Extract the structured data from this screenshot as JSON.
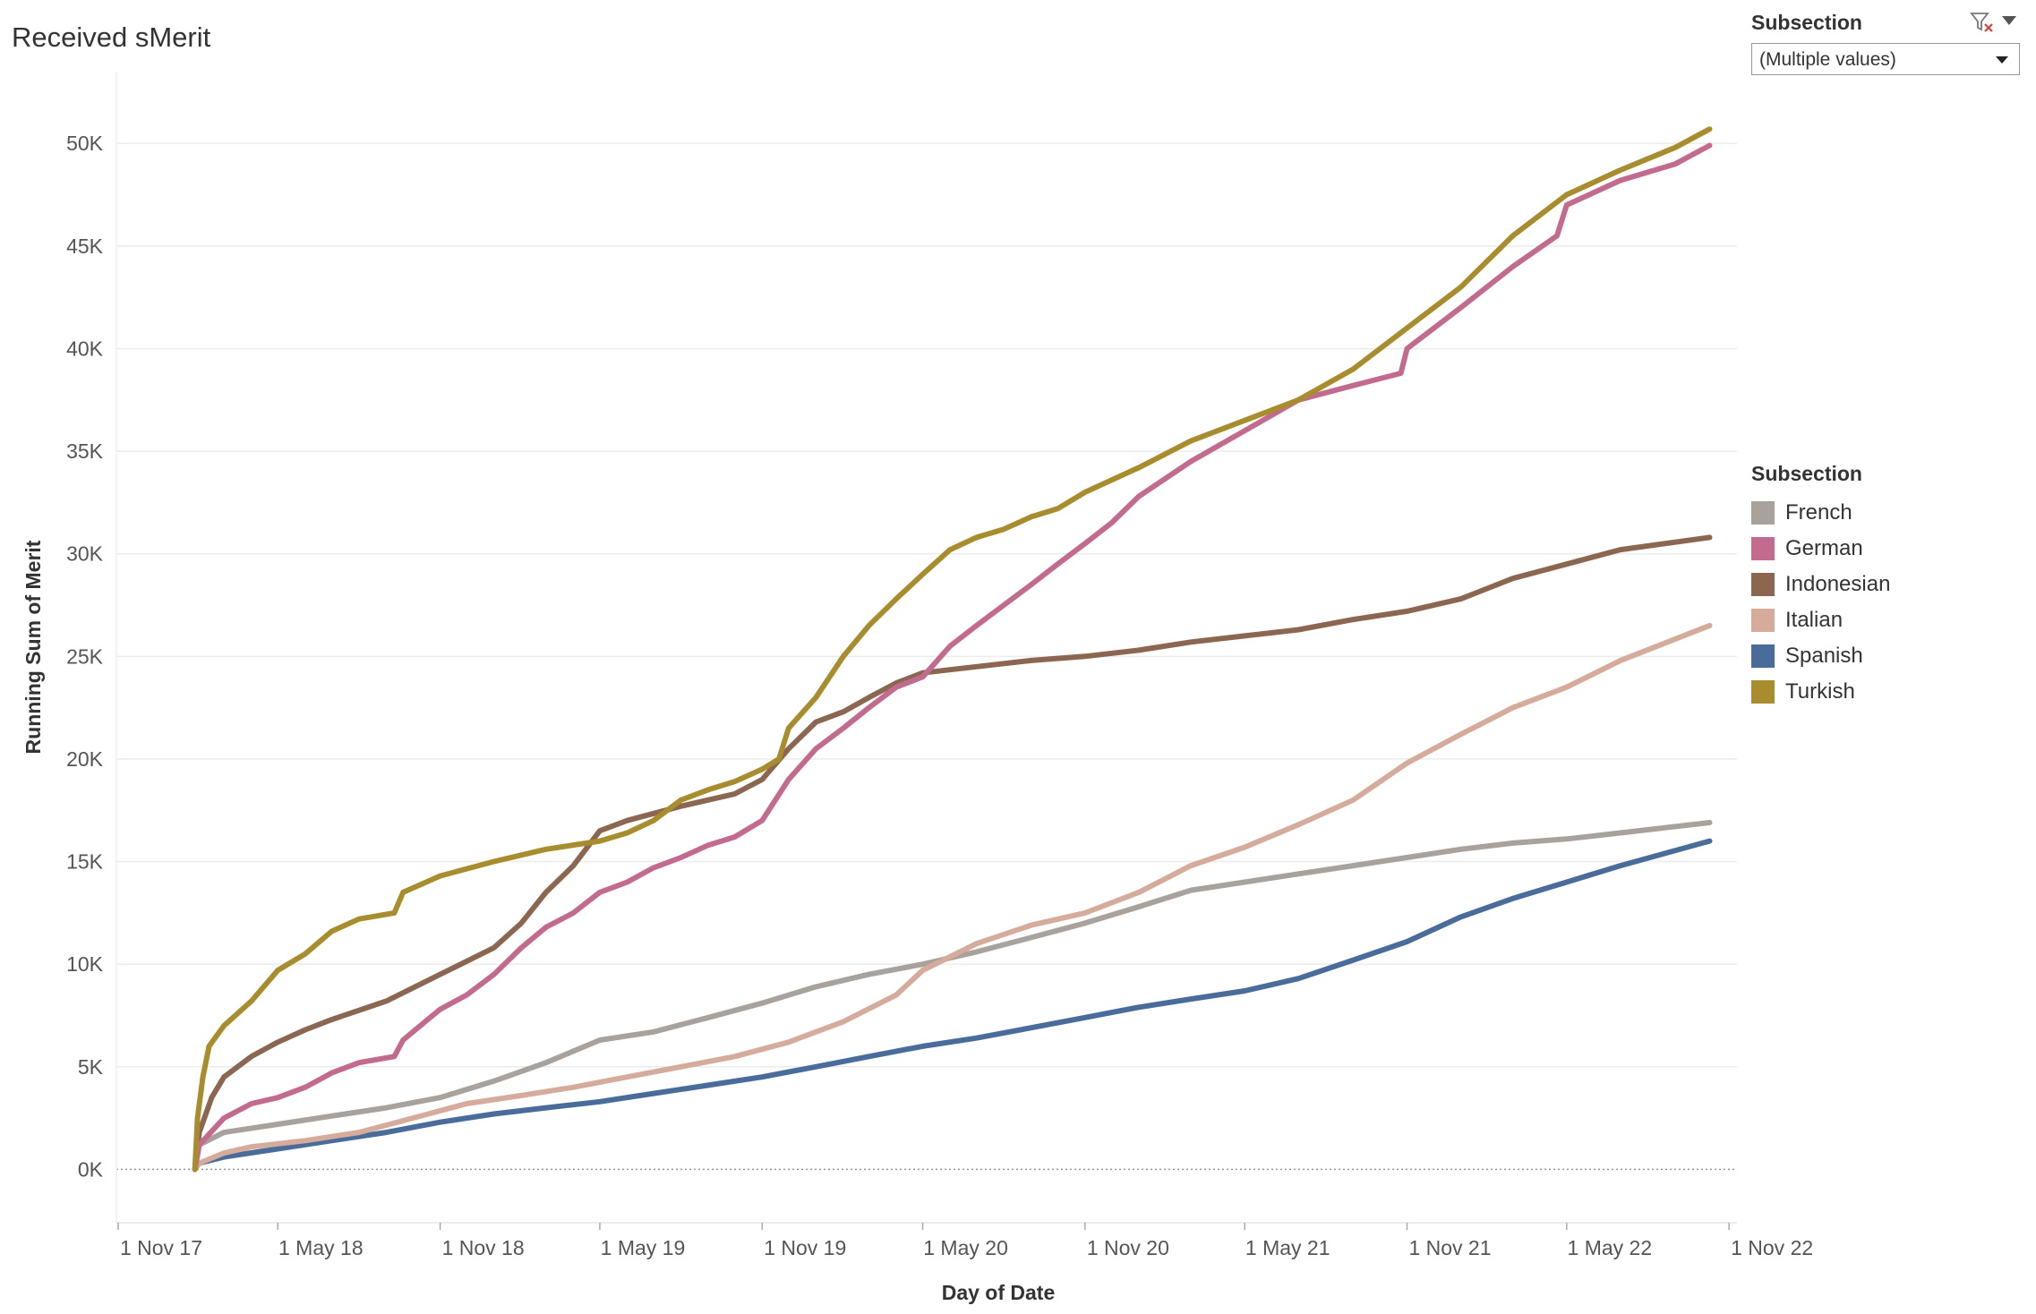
{
  "title": "Received sMerit",
  "filter": {
    "label": "Subsection",
    "selected": "(Multiple values)",
    "clear_icon": "filter-clear-icon",
    "menu_icon": "chevron-down-icon"
  },
  "legend": {
    "title": "Subsection",
    "items": [
      {
        "label": "French",
        "color": "#a9a19c"
      },
      {
        "label": "German",
        "color": "#c36b8e"
      },
      {
        "label": "Indonesian",
        "color": "#8b6752"
      },
      {
        "label": "Italian",
        "color": "#d5ab9b"
      },
      {
        "label": "Spanish",
        "color": "#4a6c9b"
      },
      {
        "label": "Turkish",
        "color": "#a88d2e"
      }
    ]
  },
  "chart_data": {
    "type": "line",
    "xlabel": "Day of Date",
    "ylabel": "Running Sum of Merit",
    "x_range": [
      "2017-10-30",
      "2022-11-10"
    ],
    "ylim": [
      -2600,
      53500
    ],
    "y_ticks": [
      0,
      5000,
      10000,
      15000,
      20000,
      25000,
      30000,
      35000,
      40000,
      45000,
      50000
    ],
    "y_tick_labels": [
      "0K",
      "5K",
      "10K",
      "15K",
      "20K",
      "25K",
      "30K",
      "35K",
      "40K",
      "45K",
      "50K"
    ],
    "x_ticks": [
      "2017-11-01",
      "2018-05-01",
      "2018-11-01",
      "2019-05-01",
      "2019-11-01",
      "2020-05-01",
      "2020-11-01",
      "2021-05-01",
      "2021-11-01",
      "2022-05-01",
      "2022-11-01"
    ],
    "x_tick_labels": [
      "1 Nov 17",
      "1 May 18",
      "1 Nov 18",
      "1 May 19",
      "1 Nov 19",
      "1 May 20",
      "1 Nov 20",
      "1 May 21",
      "1 Nov 21",
      "1 May 22",
      "1 Nov 22"
    ],
    "grid": "horizontal",
    "legend_position": "right",
    "series": [
      {
        "name": "Turkish",
        "color": "#a88d2e",
        "points": [
          [
            "2018-01-27",
            0
          ],
          [
            "2018-01-30",
            2500
          ],
          [
            "2018-02-05",
            4500
          ],
          [
            "2018-02-12",
            6000
          ],
          [
            "2018-03-01",
            7000
          ],
          [
            "2018-04-01",
            8200
          ],
          [
            "2018-05-01",
            9700
          ],
          [
            "2018-06-01",
            10500
          ],
          [
            "2018-07-01",
            11600
          ],
          [
            "2018-08-01",
            12200
          ],
          [
            "2018-09-10",
            12500
          ],
          [
            "2018-09-20",
            13500
          ],
          [
            "2018-11-01",
            14300
          ],
          [
            "2019-01-01",
            15000
          ],
          [
            "2019-03-01",
            15600
          ],
          [
            "2019-05-01",
            16000
          ],
          [
            "2019-06-01",
            16400
          ],
          [
            "2019-07-01",
            17000
          ],
          [
            "2019-08-01",
            18000
          ],
          [
            "2019-09-01",
            18500
          ],
          [
            "2019-10-01",
            18900
          ],
          [
            "2019-11-01",
            19500
          ],
          [
            "2019-11-20",
            20000
          ],
          [
            "2019-12-01",
            21500
          ],
          [
            "2020-01-01",
            23000
          ],
          [
            "2020-02-01",
            25000
          ],
          [
            "2020-03-01",
            26500
          ],
          [
            "2020-04-01",
            27800
          ],
          [
            "2020-05-01",
            29000
          ],
          [
            "2020-06-01",
            30200
          ],
          [
            "2020-07-01",
            30800
          ],
          [
            "2020-08-01",
            31200
          ],
          [
            "2020-09-01",
            31800
          ],
          [
            "2020-10-01",
            32200
          ],
          [
            "2020-11-01",
            33000
          ],
          [
            "2021-01-01",
            34200
          ],
          [
            "2021-03-01",
            35500
          ],
          [
            "2021-05-01",
            36500
          ],
          [
            "2021-07-01",
            37500
          ],
          [
            "2021-09-01",
            39000
          ],
          [
            "2021-11-01",
            41000
          ],
          [
            "2022-01-01",
            43000
          ],
          [
            "2022-03-01",
            45500
          ],
          [
            "2022-05-01",
            47500
          ],
          [
            "2022-07-01",
            48700
          ],
          [
            "2022-09-01",
            49800
          ],
          [
            "2022-10-10",
            50700
          ]
        ]
      },
      {
        "name": "German",
        "color": "#c36b8e",
        "points": [
          [
            "2018-01-27",
            0
          ],
          [
            "2018-02-01",
            1200
          ],
          [
            "2018-03-01",
            2500
          ],
          [
            "2018-04-01",
            3200
          ],
          [
            "2018-05-01",
            3500
          ],
          [
            "2018-06-01",
            4000
          ],
          [
            "2018-07-01",
            4700
          ],
          [
            "2018-08-01",
            5200
          ],
          [
            "2018-09-10",
            5500
          ],
          [
            "2018-09-20",
            6300
          ],
          [
            "2018-10-01",
            6700
          ],
          [
            "2018-11-01",
            7800
          ],
          [
            "2018-12-01",
            8500
          ],
          [
            "2019-01-01",
            9500
          ],
          [
            "2019-02-01",
            10800
          ],
          [
            "2019-03-01",
            11800
          ],
          [
            "2019-04-01",
            12500
          ],
          [
            "2019-05-01",
            13500
          ],
          [
            "2019-06-01",
            14000
          ],
          [
            "2019-07-01",
            14700
          ],
          [
            "2019-08-01",
            15200
          ],
          [
            "2019-09-01",
            15800
          ],
          [
            "2019-10-01",
            16200
          ],
          [
            "2019-11-01",
            17000
          ],
          [
            "2019-12-01",
            19000
          ],
          [
            "2020-01-01",
            20500
          ],
          [
            "2020-02-01",
            21500
          ],
          [
            "2020-03-01",
            22500
          ],
          [
            "2020-04-01",
            23500
          ],
          [
            "2020-05-01",
            24000
          ],
          [
            "2020-06-01",
            25500
          ],
          [
            "2020-07-01",
            26500
          ],
          [
            "2020-08-01",
            27500
          ],
          [
            "2020-09-01",
            28500
          ],
          [
            "2020-10-01",
            29500
          ],
          [
            "2020-11-01",
            30500
          ],
          [
            "2020-12-01",
            31500
          ],
          [
            "2021-01-01",
            32800
          ],
          [
            "2021-03-01",
            34500
          ],
          [
            "2021-05-01",
            36000
          ],
          [
            "2021-07-01",
            37500
          ],
          [
            "2021-09-01",
            38200
          ],
          [
            "2021-10-25",
            38800
          ],
          [
            "2021-11-01",
            40000
          ],
          [
            "2022-01-01",
            42000
          ],
          [
            "2022-03-01",
            44000
          ],
          [
            "2022-04-20",
            45500
          ],
          [
            "2022-05-01",
            47000
          ],
          [
            "2022-07-01",
            48200
          ],
          [
            "2022-09-01",
            49000
          ],
          [
            "2022-10-10",
            49900
          ]
        ]
      },
      {
        "name": "Indonesian",
        "color": "#8b6752",
        "points": [
          [
            "2018-01-27",
            0
          ],
          [
            "2018-02-01",
            1800
          ],
          [
            "2018-02-15",
            3500
          ],
          [
            "2018-03-01",
            4500
          ],
          [
            "2018-04-01",
            5500
          ],
          [
            "2018-05-01",
            6200
          ],
          [
            "2018-06-01",
            6800
          ],
          [
            "2018-07-01",
            7300
          ],
          [
            "2018-09-01",
            8200
          ],
          [
            "2018-11-01",
            9500
          ],
          [
            "2019-01-01",
            10800
          ],
          [
            "2019-02-01",
            12000
          ],
          [
            "2019-03-01",
            13500
          ],
          [
            "2019-04-01",
            14800
          ],
          [
            "2019-05-01",
            16500
          ],
          [
            "2019-06-01",
            17000
          ],
          [
            "2019-08-01",
            17700
          ],
          [
            "2019-10-01",
            18300
          ],
          [
            "2019-11-01",
            19000
          ],
          [
            "2019-12-01",
            20500
          ],
          [
            "2020-01-01",
            21800
          ],
          [
            "2020-02-01",
            22300
          ],
          [
            "2020-03-01",
            23000
          ],
          [
            "2020-04-01",
            23700
          ],
          [
            "2020-05-01",
            24200
          ],
          [
            "2020-07-01",
            24500
          ],
          [
            "2020-09-01",
            24800
          ],
          [
            "2020-11-01",
            25000
          ],
          [
            "2021-01-01",
            25300
          ],
          [
            "2021-03-01",
            25700
          ],
          [
            "2021-05-01",
            26000
          ],
          [
            "2021-07-01",
            26300
          ],
          [
            "2021-09-01",
            26800
          ],
          [
            "2021-11-01",
            27200
          ],
          [
            "2022-01-01",
            27800
          ],
          [
            "2022-03-01",
            28800
          ],
          [
            "2022-05-01",
            29500
          ],
          [
            "2022-07-01",
            30200
          ],
          [
            "2022-10-10",
            30800
          ]
        ]
      },
      {
        "name": "Italian",
        "color": "#d5ab9b",
        "points": [
          [
            "2018-01-27",
            0
          ],
          [
            "2018-02-01",
            300
          ],
          [
            "2018-03-01",
            800
          ],
          [
            "2018-04-01",
            1100
          ],
          [
            "2018-06-01",
            1400
          ],
          [
            "2018-08-01",
            1800
          ],
          [
            "2018-10-01",
            2500
          ],
          [
            "2018-12-01",
            3200
          ],
          [
            "2019-02-01",
            3600
          ],
          [
            "2019-04-01",
            4000
          ],
          [
            "2019-06-01",
            4500
          ],
          [
            "2019-08-01",
            5000
          ],
          [
            "2019-10-01",
            5500
          ],
          [
            "2019-12-01",
            6200
          ],
          [
            "2020-02-01",
            7200
          ],
          [
            "2020-04-01",
            8500
          ],
          [
            "2020-05-01",
            9700
          ],
          [
            "2020-07-01",
            11000
          ],
          [
            "2020-09-01",
            11900
          ],
          [
            "2020-11-01",
            12500
          ],
          [
            "2021-01-01",
            13500
          ],
          [
            "2021-03-01",
            14800
          ],
          [
            "2021-05-01",
            15700
          ],
          [
            "2021-07-01",
            16800
          ],
          [
            "2021-09-01",
            18000
          ],
          [
            "2021-11-01",
            19800
          ],
          [
            "2022-01-01",
            21200
          ],
          [
            "2022-03-01",
            22500
          ],
          [
            "2022-05-01",
            23500
          ],
          [
            "2022-07-01",
            24800
          ],
          [
            "2022-10-10",
            26500
          ]
        ]
      },
      {
        "name": "French",
        "color": "#a9a19c",
        "points": [
          [
            "2018-01-27",
            0
          ],
          [
            "2018-02-01",
            1200
          ],
          [
            "2018-03-01",
            1800
          ],
          [
            "2018-05-01",
            2200
          ],
          [
            "2018-07-01",
            2600
          ],
          [
            "2018-09-01",
            3000
          ],
          [
            "2018-11-01",
            3500
          ],
          [
            "2019-01-01",
            4300
          ],
          [
            "2019-03-01",
            5200
          ],
          [
            "2019-05-01",
            6300
          ],
          [
            "2019-07-01",
            6700
          ],
          [
            "2019-09-01",
            7400
          ],
          [
            "2019-11-01",
            8100
          ],
          [
            "2020-01-01",
            8900
          ],
          [
            "2020-03-01",
            9500
          ],
          [
            "2020-05-01",
            10000
          ],
          [
            "2020-07-01",
            10600
          ],
          [
            "2020-09-01",
            11300
          ],
          [
            "2020-11-01",
            12000
          ],
          [
            "2021-01-01",
            12800
          ],
          [
            "2021-03-01",
            13600
          ],
          [
            "2021-05-01",
            14000
          ],
          [
            "2021-07-01",
            14400
          ],
          [
            "2021-09-01",
            14800
          ],
          [
            "2021-11-01",
            15200
          ],
          [
            "2022-01-01",
            15600
          ],
          [
            "2022-03-01",
            15900
          ],
          [
            "2022-05-01",
            16100
          ],
          [
            "2022-07-01",
            16400
          ],
          [
            "2022-10-10",
            16900
          ]
        ]
      },
      {
        "name": "Spanish",
        "color": "#4a6c9b",
        "points": [
          [
            "2018-01-27",
            0
          ],
          [
            "2018-02-01",
            300
          ],
          [
            "2018-03-01",
            600
          ],
          [
            "2018-05-01",
            1000
          ],
          [
            "2018-07-01",
            1400
          ],
          [
            "2018-09-01",
            1800
          ],
          [
            "2018-11-01",
            2300
          ],
          [
            "2019-01-01",
            2700
          ],
          [
            "2019-03-01",
            3000
          ],
          [
            "2019-05-01",
            3300
          ],
          [
            "2019-07-01",
            3700
          ],
          [
            "2019-09-01",
            4100
          ],
          [
            "2019-11-01",
            4500
          ],
          [
            "2020-01-01",
            5000
          ],
          [
            "2020-03-01",
            5500
          ],
          [
            "2020-05-01",
            6000
          ],
          [
            "2020-07-01",
            6400
          ],
          [
            "2020-09-01",
            6900
          ],
          [
            "2020-11-01",
            7400
          ],
          [
            "2021-01-01",
            7900
          ],
          [
            "2021-03-01",
            8300
          ],
          [
            "2021-05-01",
            8700
          ],
          [
            "2021-07-01",
            9300
          ],
          [
            "2021-09-01",
            10200
          ],
          [
            "2021-11-01",
            11100
          ],
          [
            "2022-01-01",
            12300
          ],
          [
            "2022-03-01",
            13200
          ],
          [
            "2022-05-01",
            14000
          ],
          [
            "2022-07-01",
            14800
          ],
          [
            "2022-10-10",
            16000
          ]
        ]
      }
    ]
  }
}
